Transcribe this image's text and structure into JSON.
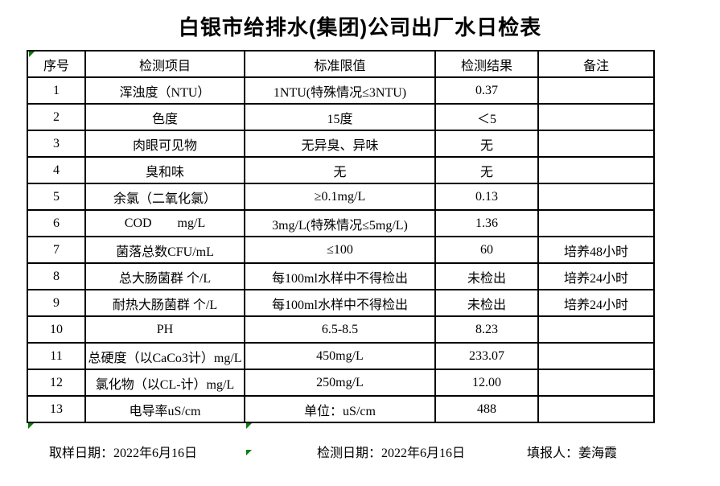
{
  "title": "白银市给排水(集团)公司出厂水日检表",
  "colors": {
    "background": "#ffffff",
    "text": "#000000",
    "table_border": "#000000",
    "cell_flag_green": "#0a7d0a"
  },
  "table": {
    "headers": [
      "序号",
      "检测项目",
      "标准限值",
      "检测结果",
      "备注"
    ],
    "rows": [
      {
        "no": "1",
        "item": "浑浊度（NTU）",
        "limit": "1NTU(特殊情况≤3NTU)",
        "result": "0.37",
        "note": ""
      },
      {
        "no": "2",
        "item": "色度",
        "limit": "15度",
        "result": "＜5",
        "note": ""
      },
      {
        "no": "3",
        "item": "肉眼可见物",
        "limit": "无异臭、异味",
        "result": "无",
        "note": ""
      },
      {
        "no": "4",
        "item": "臭和味",
        "limit": "无",
        "result": "无",
        "note": ""
      },
      {
        "no": "5",
        "item": "余氯（二氧化氯）",
        "limit": "≥0.1mg/L",
        "result": "0.13",
        "note": ""
      },
      {
        "no": "6",
        "item": "COD        mg/L",
        "limit": "3mg/L(特殊情况≤5mg/L)",
        "result": "1.36",
        "note": ""
      },
      {
        "no": "7",
        "item": "菌落总数CFU/mL",
        "limit": "≤100",
        "result": "60",
        "note": "培养48小时"
      },
      {
        "no": "8",
        "item": "总大肠菌群 个/L",
        "limit": "每100ml水样中不得检出",
        "result": "未检出",
        "note": "培养24小时"
      },
      {
        "no": "9",
        "item": "耐热大肠菌群 个/L",
        "limit": "每100ml水样中不得检出",
        "result": "未检出",
        "note": "培养24小时"
      },
      {
        "no": "10",
        "item": "PH",
        "limit": "6.5-8.5",
        "result": "8.23",
        "note": ""
      },
      {
        "no": "11",
        "item": "总硬度（以CaCo3计）mg/L",
        "limit": "450mg/L",
        "result": "233.07",
        "note": ""
      },
      {
        "no": "12",
        "item": "氯化物（以CL-计）mg/L",
        "limit": "250mg/L",
        "result": "12.00",
        "note": ""
      },
      {
        "no": "13",
        "item": "电导率uS/cm",
        "limit": "单位：uS/cm",
        "result": "488",
        "note": ""
      }
    ]
  },
  "footer": {
    "sample_date_label": "取样日期：",
    "sample_date_value": "2022年6月16日",
    "test_date_label": "检测日期：",
    "test_date_value": "2022年6月16日",
    "reporter_label": "填报人：",
    "reporter_value": "姜海霞"
  }
}
